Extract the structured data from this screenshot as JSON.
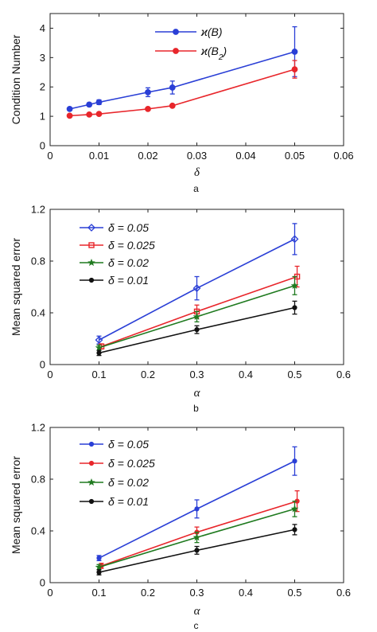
{
  "chart_data": [
    {
      "type": "line",
      "panel_label": "a",
      "xlabel": "δ",
      "ylabel": "Condition Number",
      "xlim": [
        0,
        0.06
      ],
      "ylim": [
        0,
        4.5
      ],
      "xticks": [
        0,
        0.01,
        0.02,
        0.03,
        0.04,
        0.05,
        0.06
      ],
      "xtick_labels": [
        "0",
        "0.01",
        "0.02",
        "0.03",
        "0.04",
        "0.05",
        "0.06"
      ],
      "yticks": [
        0,
        1,
        2,
        3,
        4
      ],
      "ytick_labels": [
        "0",
        "1",
        "2",
        "3",
        "4"
      ],
      "legend_position": "top-center",
      "grid": false,
      "series": [
        {
          "name": "ϰ(B)",
          "color": "#2a3fd6",
          "marker": "circle",
          "x": [
            0.004,
            0.008,
            0.01,
            0.02,
            0.025,
            0.05
          ],
          "y": [
            1.25,
            1.4,
            1.48,
            1.82,
            1.98,
            3.2
          ],
          "err": [
            0.03,
            0.06,
            0.08,
            0.15,
            0.22,
            0.85
          ]
        },
        {
          "name": "ϰ(B2)",
          "color": "#e8262b",
          "marker": "circle",
          "x": [
            0.004,
            0.008,
            0.01,
            0.02,
            0.025,
            0.05
          ],
          "y": [
            1.02,
            1.06,
            1.08,
            1.25,
            1.36,
            2.6
          ],
          "err": [
            0.02,
            0.02,
            0.03,
            0.03,
            0.04,
            0.3
          ]
        }
      ]
    },
    {
      "type": "line",
      "panel_label": "b",
      "xlabel": "α",
      "ylabel": "Mean squared error",
      "xlim": [
        0,
        0.6
      ],
      "ylim": [
        0,
        1.2
      ],
      "xticks": [
        0,
        0.1,
        0.2,
        0.3,
        0.4,
        0.5,
        0.6
      ],
      "xtick_labels": [
        "0",
        "0.1",
        "0.2",
        "0.3",
        "0.4",
        "0.5",
        "0.6"
      ],
      "yticks": [
        0,
        0.4,
        0.8,
        1.2
      ],
      "ytick_labels": [
        "0",
        "0.4",
        "0.8",
        "1.2"
      ],
      "legend_position": "top-left",
      "grid": false,
      "series": [
        {
          "name": "δ = 0.05",
          "color": "#2a3fd6",
          "marker": "diamond",
          "x": [
            0.1,
            0.3,
            0.5
          ],
          "y": [
            0.19,
            0.59,
            0.97
          ],
          "err": [
            0.03,
            0.09,
            0.12
          ]
        },
        {
          "name": "δ = 0.025",
          "color": "#e8262b",
          "marker": "square",
          "x": [
            0.105,
            0.3,
            0.505
          ],
          "y": [
            0.14,
            0.41,
            0.68
          ],
          "err": [
            0.02,
            0.05,
            0.08
          ]
        },
        {
          "name": "δ = 0.02",
          "color": "#1f7a1f",
          "marker": "star",
          "x": [
            0.1,
            0.3,
            0.5
          ],
          "y": [
            0.13,
            0.37,
            0.61
          ],
          "err": [
            0.02,
            0.04,
            0.07
          ]
        },
        {
          "name": "δ = 0.01",
          "color": "#111111",
          "marker": "dot",
          "x": [
            0.1,
            0.3,
            0.5
          ],
          "y": [
            0.09,
            0.27,
            0.44
          ],
          "err": [
            0.02,
            0.03,
            0.05
          ]
        }
      ]
    },
    {
      "type": "line",
      "panel_label": "c",
      "xlabel": "α",
      "ylabel": "Mean squared error",
      "xlim": [
        0,
        0.6
      ],
      "ylim": [
        0,
        1.2
      ],
      "xticks": [
        0,
        0.1,
        0.2,
        0.3,
        0.4,
        0.5,
        0.6
      ],
      "xtick_labels": [
        "0",
        "0.1",
        "0.2",
        "0.3",
        "0.4",
        "0.5",
        "0.6"
      ],
      "yticks": [
        0,
        0.4,
        0.8,
        1.2
      ],
      "ytick_labels": [
        "0",
        "0.4",
        "0.8",
        "1.2"
      ],
      "legend_position": "top-left",
      "grid": false,
      "series": [
        {
          "name": "δ = 0.05",
          "color": "#2a3fd6",
          "marker": "dot",
          "x": [
            0.1,
            0.3,
            0.5
          ],
          "y": [
            0.19,
            0.57,
            0.94
          ],
          "err": [
            0.02,
            0.07,
            0.11
          ]
        },
        {
          "name": "δ = 0.025",
          "color": "#e8262b",
          "marker": "dot",
          "x": [
            0.105,
            0.3,
            0.505
          ],
          "y": [
            0.13,
            0.39,
            0.63
          ],
          "err": [
            0.02,
            0.04,
            0.08
          ]
        },
        {
          "name": "δ = 0.02",
          "color": "#1f7a1f",
          "marker": "star",
          "x": [
            0.1,
            0.3,
            0.5
          ],
          "y": [
            0.12,
            0.35,
            0.57
          ],
          "err": [
            0.02,
            0.04,
            0.06
          ]
        },
        {
          "name": "δ = 0.01",
          "color": "#111111",
          "marker": "dot",
          "x": [
            0.1,
            0.3,
            0.5
          ],
          "y": [
            0.08,
            0.25,
            0.41
          ],
          "err": [
            0.02,
            0.03,
            0.04
          ]
        }
      ]
    }
  ]
}
